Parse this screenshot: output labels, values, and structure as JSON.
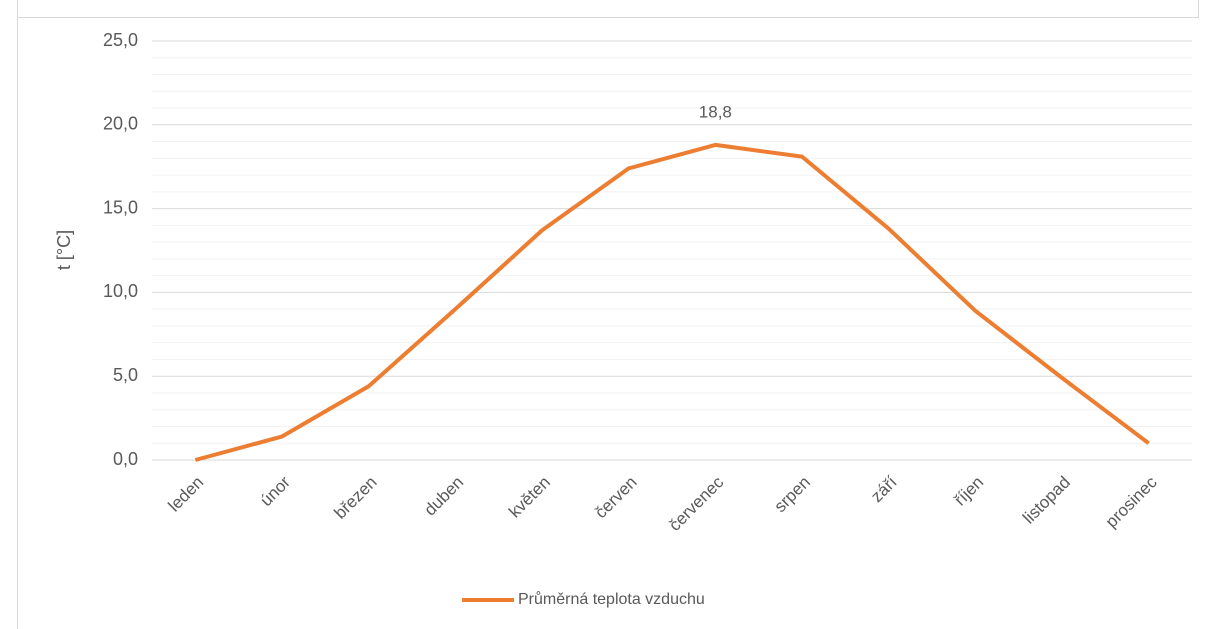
{
  "chart_data": {
    "type": "line",
    "y_axis_label": "t [°C]",
    "categories": [
      "leden",
      "únor",
      "březen",
      "duben",
      "květen",
      "červen",
      "červenec",
      "srpen",
      "září",
      "říjen",
      "listopad",
      "prosinec"
    ],
    "series": [
      {
        "name": "Průměrná teplota vzduchu",
        "color": "#ed7d31",
        "values": [
          0.0,
          1.4,
          4.4,
          9.0,
          13.7,
          17.4,
          18.8,
          18.1,
          13.8,
          8.9,
          4.9,
          1.0
        ],
        "value_labels": [
          null,
          null,
          null,
          null,
          null,
          null,
          "18,8",
          null,
          null,
          null,
          null,
          null
        ]
      }
    ],
    "ylim": [
      0,
      25
    ],
    "yticks": [
      {
        "value": 0,
        "label": "0,0"
      },
      {
        "value": 5,
        "label": "5,0"
      },
      {
        "value": 10,
        "label": "10,0"
      },
      {
        "value": 15,
        "label": "15,0"
      },
      {
        "value": 20,
        "label": "20,0"
      },
      {
        "value": 25,
        "label": "25,0"
      }
    ],
    "minor_yticks": [
      1,
      2,
      3,
      4,
      6,
      7,
      8,
      9,
      11,
      12,
      13,
      14,
      16,
      17,
      18,
      19,
      21,
      22,
      23,
      24
    ],
    "grid": true,
    "legend": "bottom"
  }
}
